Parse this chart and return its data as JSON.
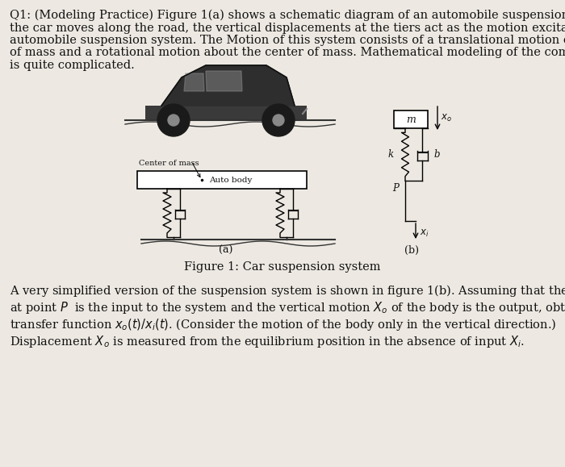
{
  "background_color": "#ede9e2",
  "title_text": "Figure 1: Car suspension system",
  "paragraph1_line1": "Q1: (Modeling Practice) Figure 1(a) shows a schematic diagram of an automobile suspension system. As",
  "paragraph1_line2": "the car moves along the road, the vertical displacements at the tiers act as the motion excitation to the",
  "paragraph1_line3": "automobile suspension system. The Motion of this system consists of a translational motion of the center",
  "paragraph1_line4": "of mass and a rotational motion about the center of mass. Mathematical modeling of the complete system",
  "paragraph1_line5": "is quite complicated.",
  "bottom_line1": "A very simplified version of the suspension system is shown in figure 1(b). Assuming that the motion $X_i$",
  "bottom_line2": "at point $P$  is the input to the system and the vertical motion $X_o$ of the body is the output, obtain the",
  "bottom_line3": "transfer function $x_o\\left(t\\right)/x_i\\left(t\\right)$. (Consider the motion of the body only in the vertical direction.)",
  "bottom_line4": "Displacement $X_o$ is measured from the equilibrium position in the absence of input $X_i$.",
  "font_size_body": 10.5,
  "font_size_title": 10.5,
  "text_color": "#111111",
  "fig_width": 7.0,
  "fig_height": 5.79
}
